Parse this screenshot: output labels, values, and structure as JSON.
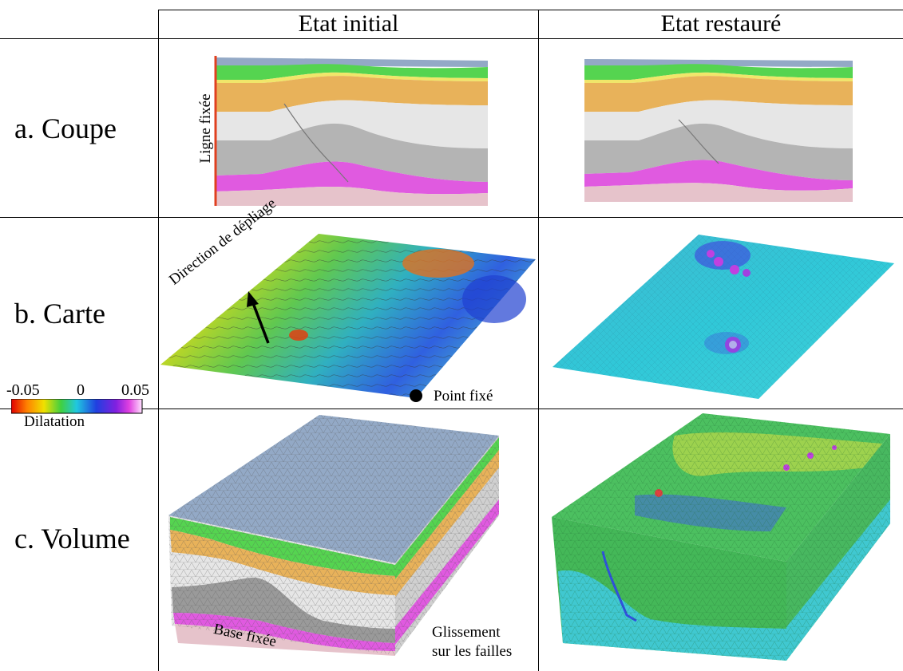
{
  "columns": {
    "initial": "Etat initial",
    "restored": "Etat restauré"
  },
  "rows": {
    "coupe": "a. Coupe",
    "carte": "b. Carte",
    "volume": "c. Volume"
  },
  "annotations": {
    "fixed_line": "Ligne fixée",
    "unfold_direction": "Direction de dépliage",
    "fixed_point": "Point fixé",
    "fixed_base": "Base fixée",
    "fault_slip_1": "Glissement",
    "fault_slip_2": "sur les failles"
  },
  "colorbar": {
    "min": "-0.05",
    "mid": "0",
    "max": "0.05",
    "label": "Dilatation"
  },
  "colors": {
    "top_blue": "#93a9c6",
    "green": "#55d450",
    "yellow": "#f0e66a",
    "orange": "#e8b25a",
    "light_gray": "#e6e6e6",
    "mid_gray": "#b4b4b4",
    "magenta": "#e05ae0",
    "pink": "#e6c3cb",
    "fixed_line_red": "#e04020"
  }
}
